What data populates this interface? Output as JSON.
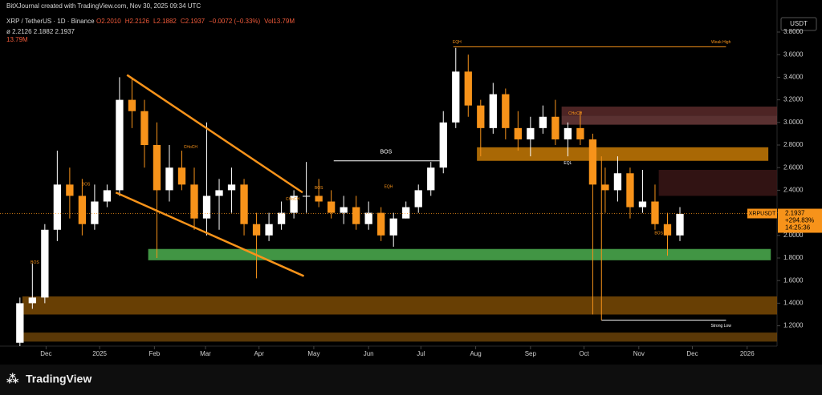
{
  "header": {
    "credit": "BitXJournal created with TradingView.com, Nov 30, 2025 09:34 UTC",
    "symbol": "XRP / TetherUS · 1D · Binance",
    "ohlc": [
      "O2.2010",
      "H2.2126",
      "L2.1882",
      "C2.1937",
      "−0.0072 (−0.33%)",
      "Vol13.79M"
    ],
    "indicator": "ø 2.2126 2.1882 2.1937",
    "volume": "13.79M",
    "currency": "USDT"
  },
  "price_tag": {
    "symbol": "XRPUSDT",
    "price": "2.1937",
    "change": "+294.83%",
    "countdown": "14:25:36",
    "value": 2.1937
  },
  "brand": "TradingView",
  "chart_data": {
    "type": "candlestick",
    "up_color": "#ffffff",
    "down_color": "#f7931a",
    "candles": {
      "open": [
        1.05,
        1.4,
        1.45,
        2.05,
        2.45,
        2.35,
        2.1,
        2.3,
        2.4,
        3.2,
        3.1,
        2.8,
        2.4,
        2.6,
        2.45,
        2.15,
        2.35,
        2.4,
        2.45,
        2.1,
        2.0,
        2.1,
        2.2,
        2.35,
        2.35,
        2.3,
        2.2,
        2.25,
        2.1,
        2.2,
        2.0,
        2.15,
        2.25,
        2.4,
        2.6,
        3.0,
        3.45,
        3.15,
        2.95,
        3.25,
        2.95,
        2.85,
        2.95,
        3.05,
        2.85,
        2.95,
        2.85,
        2.45,
        2.4,
        2.55,
        2.25,
        2.3,
        2.1,
        2.0
      ],
      "high": [
        1.45,
        1.75,
        2.1,
        2.75,
        2.6,
        2.5,
        2.45,
        2.45,
        3.4,
        3.4,
        3.2,
        3.0,
        2.8,
        2.75,
        2.6,
        3.0,
        2.5,
        2.6,
        2.5,
        2.2,
        2.2,
        2.3,
        2.4,
        2.65,
        2.5,
        2.4,
        2.35,
        2.35,
        2.3,
        2.25,
        2.2,
        2.3,
        2.45,
        2.65,
        3.1,
        3.66,
        3.6,
        3.2,
        3.35,
        3.3,
        3.1,
        3.05,
        3.15,
        3.2,
        3.0,
        3.1,
        2.9,
        2.6,
        2.7,
        2.6,
        2.58,
        2.45,
        2.2,
        2.25
      ],
      "low": [
        1.02,
        1.35,
        1.4,
        1.95,
        2.15,
        2.0,
        2.05,
        2.25,
        2.35,
        2.95,
        2.6,
        1.8,
        2.3,
        2.4,
        2.05,
        2.0,
        2.05,
        2.2,
        2.0,
        1.62,
        1.95,
        2.05,
        2.15,
        2.2,
        2.25,
        2.15,
        2.1,
        2.05,
        2.05,
        1.95,
        1.9,
        2.15,
        2.2,
        2.35,
        2.55,
        2.95,
        3.05,
        2.7,
        2.9,
        2.85,
        2.75,
        2.7,
        2.9,
        2.8,
        2.7,
        2.8,
        1.3,
        2.2,
        2.3,
        2.15,
        2.2,
        2.05,
        1.82,
        1.95
      ],
      "close": [
        1.4,
        1.45,
        2.05,
        2.45,
        2.35,
        2.1,
        2.3,
        2.4,
        3.2,
        3.1,
        2.8,
        2.4,
        2.6,
        2.45,
        2.15,
        2.35,
        2.4,
        2.45,
        2.1,
        2.0,
        2.1,
        2.2,
        2.35,
        2.35,
        2.3,
        2.2,
        2.25,
        2.1,
        2.2,
        2.0,
        2.15,
        2.25,
        2.4,
        2.6,
        3.0,
        3.45,
        3.15,
        2.95,
        3.25,
        2.95,
        2.85,
        2.95,
        3.05,
        2.85,
        2.95,
        2.85,
        2.45,
        2.4,
        2.55,
        2.25,
        2.3,
        2.1,
        2.0,
        2.19
      ]
    },
    "xlim": [
      -1.6,
      60.8
    ],
    "xticks": [
      {
        "value": 2.1,
        "label": "Dec"
      },
      {
        "value": 6.4,
        "label": "2025"
      },
      {
        "value": 10.8,
        "label": "Feb"
      },
      {
        "value": 14.9,
        "label": "Mar"
      },
      {
        "value": 19.2,
        "label": "Apr"
      },
      {
        "value": 23.6,
        "label": "May"
      },
      {
        "value": 28,
        "label": "Jun"
      },
      {
        "value": 32.2,
        "label": "Jul"
      },
      {
        "value": 36.6,
        "label": "Aug"
      },
      {
        "value": 41,
        "label": "Sep"
      },
      {
        "value": 45.3,
        "label": "Oct"
      },
      {
        "value": 49.7,
        "label": "Nov"
      },
      {
        "value": 54,
        "label": "Dec"
      },
      {
        "value": 58.4,
        "label": "2026"
      }
    ],
    "ylim": [
      1.02,
      3.8
    ],
    "yticks": [
      {
        "value": 1.2,
        "label": "1.2000"
      },
      {
        "value": 1.4,
        "label": "1.4000"
      },
      {
        "value": 1.6,
        "label": "1.6000"
      },
      {
        "value": 1.8,
        "label": "1.8000"
      },
      {
        "value": 2.0,
        "label": "2.0000"
      },
      {
        "value": 2.2,
        "label": "2.2000"
      },
      {
        "value": 2.4,
        "label": "2.4000"
      },
      {
        "value": 2.6,
        "label": "2.6000"
      },
      {
        "value": 2.8,
        "label": "2.8000"
      },
      {
        "value": 3.0,
        "label": "3.0000"
      },
      {
        "value": 3.2,
        "label": "3.2000"
      },
      {
        "value": 3.4,
        "label": "3.4000"
      },
      {
        "value": 3.6,
        "label": "3.6000"
      },
      {
        "value": 3.8,
        "label": "3.8000"
      }
    ],
    "zones": [
      {
        "x0": 10.3,
        "x1": 60.3,
        "y0": 1.78,
        "y1": 1.88,
        "color": "#4caf50"
      },
      {
        "x0": 36.7,
        "x1": 60.1,
        "y0": 2.66,
        "y1": 2.78,
        "color": "#c77a06"
      },
      {
        "x0": 0.2,
        "x1": 60.8,
        "y0": 1.3,
        "y1": 1.46,
        "color": "#7a4a05"
      },
      {
        "x0": 0.2,
        "x1": 60.8,
        "y0": 1.06,
        "y1": 1.14,
        "color": "#6a4208"
      },
      {
        "x0": 43.5,
        "x1": 60.8,
        "y0": 3.06,
        "y1": 3.14,
        "color": "#5a2a2a"
      },
      {
        "x0": 43.5,
        "x1": 60.8,
        "y0": 2.98,
        "y1": 3.06,
        "color": "#6a3a3a"
      },
      {
        "x0": 51.3,
        "x1": 60.8,
        "y0": 2.35,
        "y1": 2.58,
        "color": "#3a1616"
      }
    ],
    "lines": [
      {
        "x0": 8.6,
        "x1": 22.7,
        "y0": 3.42,
        "y1": 2.38,
        "color": "#f7931a",
        "width": 2.5
      },
      {
        "x0": 7.7,
        "x1": 22.8,
        "y0": 2.38,
        "y1": 1.64,
        "color": "#f7931a",
        "width": 2.5
      },
      {
        "x0": 25.2,
        "x1": 33.7,
        "y0": 2.66,
        "y1": 2.66,
        "color": "#ffffff",
        "width": 1
      },
      {
        "x0": 34.8,
        "x1": 56.7,
        "y0": 3.67,
        "y1": 3.67,
        "color": "#f7931a",
        "width": 1
      },
      {
        "x0": 46.7,
        "x1": 56.7,
        "y0": 1.25,
        "y1": 1.25,
        "color": "#ffffff",
        "width": 1
      },
      {
        "x0": 46.7,
        "x1": 46.7,
        "y0": 2.7,
        "y1": 1.25,
        "color": "#f7931a",
        "width": 1
      }
    ],
    "annotations": [
      {
        "text": "BOS",
        "x": 29.4,
        "y": 2.74,
        "color": "#ffffff"
      },
      {
        "text": "EQH",
        "x": 35.1,
        "y": 3.71,
        "color": "#f7931a"
      },
      {
        "text": "Weak High",
        "x": 56.3,
        "y": 3.71,
        "color": "#f7931a"
      },
      {
        "text": "Strong Low",
        "x": 56.3,
        "y": 1.2,
        "color": "#ffffff"
      },
      {
        "text": "EQL",
        "x": 44.0,
        "y": 2.64,
        "color": "#ffffff"
      },
      {
        "text": "CHoCH",
        "x": 13.7,
        "y": 2.78,
        "color": "#f7931a"
      },
      {
        "text": "CHoCH",
        "x": 21.9,
        "y": 2.32,
        "color": "#f7931a"
      },
      {
        "text": "CHoCH",
        "x": 44.6,
        "y": 3.08,
        "color": "#f7931a"
      },
      {
        "text": "BOS",
        "x": 1.2,
        "y": 1.76,
        "color": "#f7931a"
      },
      {
        "text": "BOS",
        "x": 5.3,
        "y": 2.45,
        "color": "#f7931a"
      },
      {
        "text": "BOS",
        "x": 24.0,
        "y": 2.42,
        "color": "#f7931a"
      },
      {
        "text": "EQH",
        "x": 29.6,
        "y": 2.43,
        "color": "#f7931a"
      },
      {
        "text": "BOS",
        "x": 51.3,
        "y": 2.02,
        "color": "#f7931a"
      }
    ]
  }
}
